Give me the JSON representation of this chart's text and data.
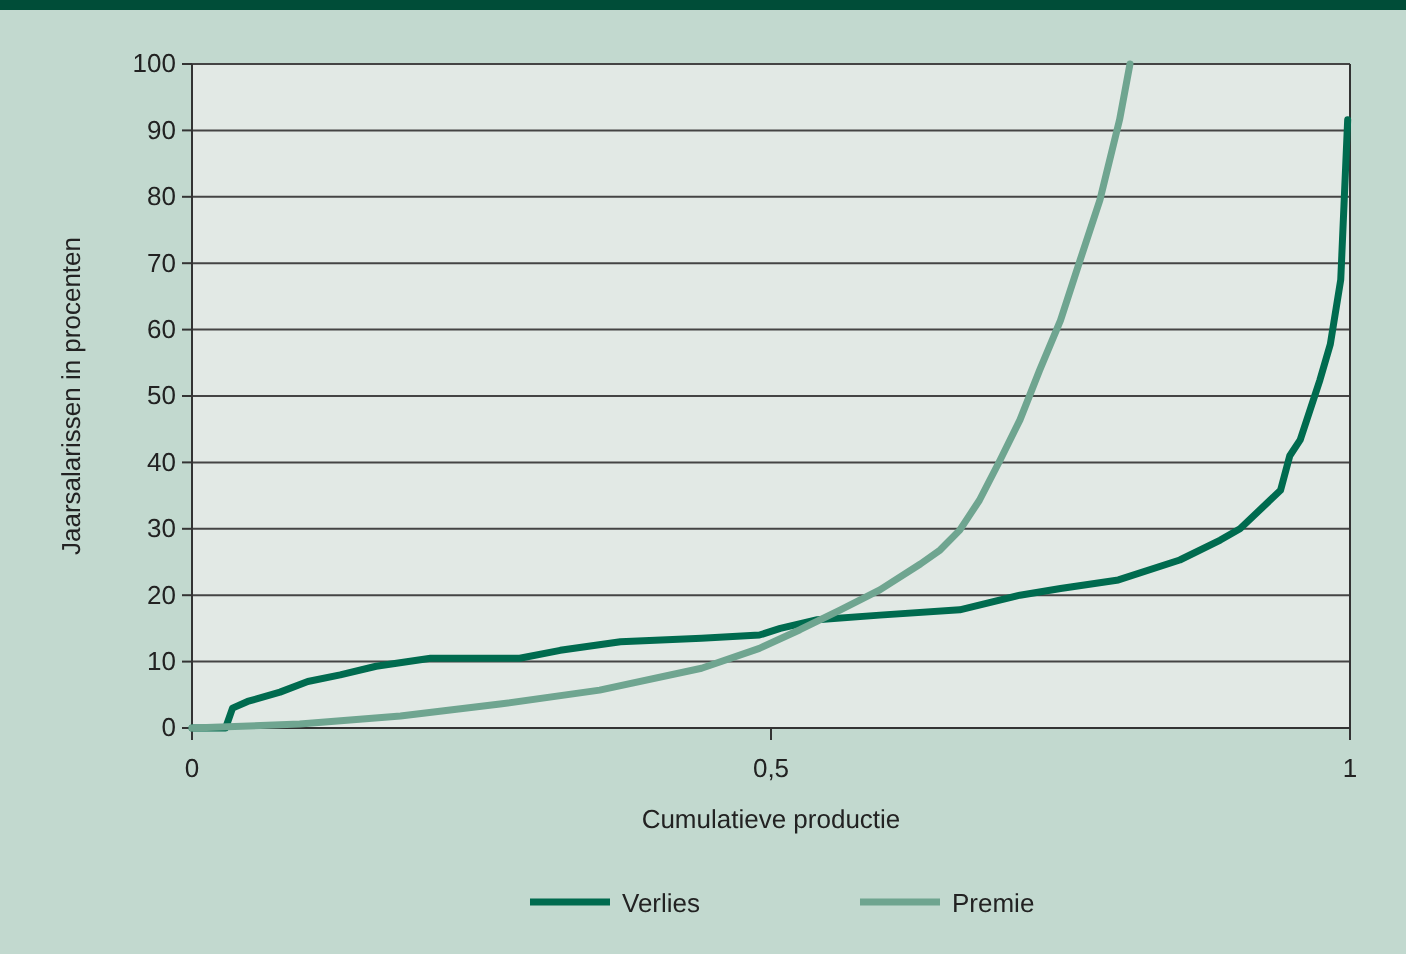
{
  "chart_data": {
    "type": "line",
    "xlabel": "Cumulatieve productie",
    "ylabel": "Jaarsalarissen in procenten",
    "xlim": [
      0,
      1
    ],
    "xticks": [
      0,
      {
        "value": 0.5,
        "label": "0,5"
      },
      1
    ],
    "ylim": [
      0,
      100
    ],
    "yticks": [
      0,
      10,
      20,
      30,
      40,
      50,
      60,
      70,
      80,
      90,
      100
    ],
    "grid": "y",
    "legend": "bottom",
    "line_style": "solid",
    "series": [
      {
        "name": "Verlies",
        "color": "#006b4f",
        "x": [
          0,
          0.029,
          0.035,
          0.048,
          0.076,
          0.1,
          0.128,
          0.159,
          0.206,
          0.283,
          0.318,
          0.37,
          0.44,
          0.49,
          0.508,
          0.54,
          0.594,
          0.663,
          0.715,
          0.75,
          0.8,
          0.853,
          0.888,
          0.905,
          0.94,
          0.948,
          0.957,
          0.974,
          0.983,
          0.992,
          0.995,
          0.998
        ],
        "values": [
          0,
          0,
          3,
          4,
          5.4,
          7,
          8,
          9.3,
          10.5,
          10.5,
          11.7,
          13,
          13.5,
          14,
          15,
          16.3,
          17,
          17.8,
          20,
          21,
          22.3,
          25.3,
          28.3,
          30,
          35.8,
          41,
          43.4,
          52.4,
          57.8,
          67.5,
          79.5,
          91.6
        ]
      },
      {
        "name": "Premie",
        "color": "#6fa590",
        "x": [
          0,
          0.093,
          0.18,
          0.266,
          0.352,
          0.44,
          0.49,
          0.525,
          0.56,
          0.594,
          0.629,
          0.646,
          0.663,
          0.68,
          0.698,
          0.715,
          0.732,
          0.75,
          0.767,
          0.784,
          0.801,
          0.81
        ],
        "values": [
          0,
          0.6,
          1.8,
          3.6,
          5.7,
          9,
          12,
          14.8,
          17.8,
          20.8,
          24.7,
          26.8,
          29.8,
          34.3,
          40.4,
          46.4,
          53.9,
          61.4,
          70.5,
          79.5,
          91.6,
          100
        ]
      }
    ]
  }
}
